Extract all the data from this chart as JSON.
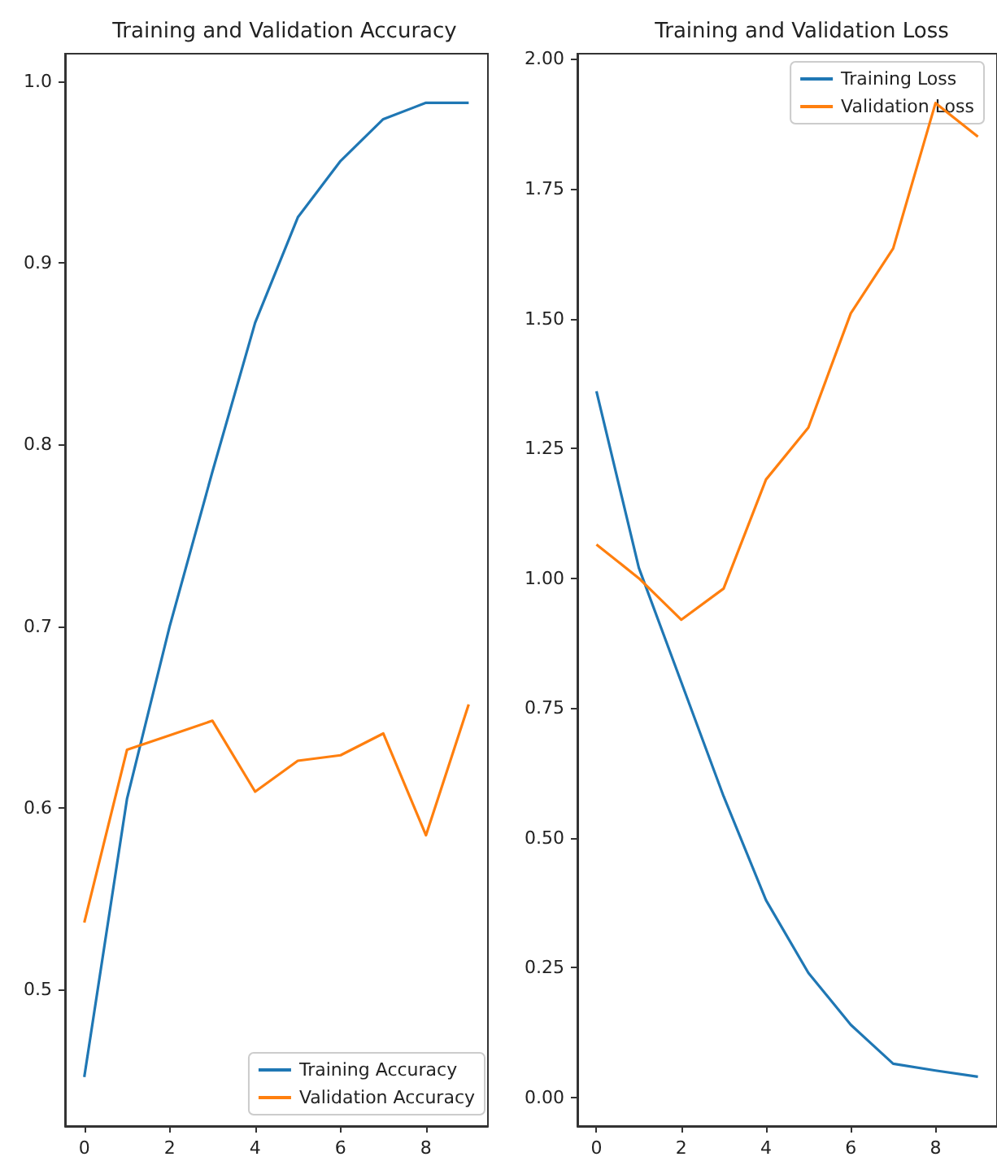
{
  "chart_data": [
    {
      "type": "line",
      "title": "Training and Validation Accuracy",
      "x": [
        0,
        1,
        2,
        3,
        4,
        5,
        6,
        7,
        8,
        9
      ],
      "series": [
        {
          "name": "Training Accuracy",
          "color": "#1f77b4",
          "values": [
            0.452,
            0.605,
            0.7,
            0.785,
            0.867,
            0.925,
            0.956,
            0.979,
            0.988,
            0.988
          ]
        },
        {
          "name": "Validation Accuracy",
          "color": "#ff7f0e",
          "values": [
            0.537,
            0.632,
            0.64,
            0.648,
            0.609,
            0.626,
            0.629,
            0.641,
            0.585,
            0.657
          ]
        }
      ],
      "xlim": [
        -0.45,
        9.45
      ],
      "xticks": [
        0,
        2,
        4,
        6,
        8
      ],
      "ylim": [
        0.425,
        1.015
      ],
      "yticks": [
        {
          "value": 0.5,
          "label": "0.5"
        },
        {
          "value": 0.6,
          "label": "0.6"
        },
        {
          "value": 0.7,
          "label": "0.7"
        },
        {
          "value": 0.8,
          "label": "0.8"
        },
        {
          "value": 0.9,
          "label": "0.9"
        },
        {
          "value": 1.0,
          "label": "1.0"
        }
      ],
      "grid": false,
      "legend": "bottom right",
      "marker": "none",
      "line_style": "solid"
    },
    {
      "type": "line",
      "title": "Training and Validation Loss",
      "x": [
        0,
        1,
        2,
        3,
        4,
        5,
        6,
        7,
        8,
        9
      ],
      "series": [
        {
          "name": "Training Loss",
          "color": "#1f77b4",
          "values": [
            1.36,
            1.02,
            0.8,
            0.58,
            0.38,
            0.24,
            0.14,
            0.065,
            0.052,
            0.04
          ]
        },
        {
          "name": "Validation Loss",
          "color": "#ff7f0e",
          "values": [
            1.065,
            1.0,
            0.92,
            0.98,
            1.19,
            1.29,
            1.51,
            1.635,
            1.915,
            1.85
          ]
        }
      ],
      "xlim": [
        -0.45,
        9.45
      ],
      "xticks": [
        0,
        2,
        4,
        6,
        8
      ],
      "ylim": [
        -0.055,
        2.01
      ],
      "yticks": [
        {
          "value": 0,
          "label": "0.00"
        },
        {
          "value": 0.25,
          "label": "0.25"
        },
        {
          "value": 0.5,
          "label": "0.50"
        },
        {
          "value": 0.75,
          "label": "0.75"
        },
        {
          "value": 1.0,
          "label": "1.00"
        },
        {
          "value": 1.25,
          "label": "1.25"
        },
        {
          "value": 1.5,
          "label": "1.50"
        },
        {
          "value": 1.75,
          "label": "1.75"
        },
        {
          "value": 2.0,
          "label": "2.00"
        }
      ],
      "grid": false,
      "legend": "top right",
      "marker": "none",
      "line_style": "solid"
    }
  ]
}
